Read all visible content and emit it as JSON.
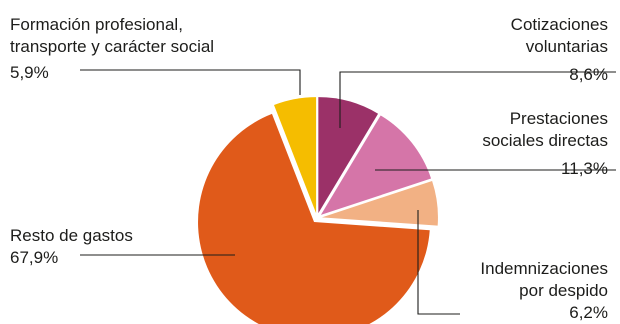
{
  "chart_data": {
    "type": "pie",
    "exploded": true,
    "start_angle_deg": 0,
    "direction": "clockwise",
    "slices": [
      {
        "label_lines": [
          "Cotizaciones",
          "voluntarias"
        ],
        "value_label": "8,6%",
        "value": 8.6,
        "color": "#9b3168"
      },
      {
        "label_lines": [
          "Prestaciones",
          "sociales directas"
        ],
        "value_label": "11,3%",
        "value": 11.3,
        "color": "#d575a8"
      },
      {
        "label_lines": [
          "Indemnizaciones",
          "por despido"
        ],
        "value_label": "6,2%",
        "value": 6.2,
        "color": "#f2b184"
      },
      {
        "label_lines": [
          "Resto de gastos"
        ],
        "value_label": "67,9%",
        "value": 67.9,
        "color": "#e05a1a"
      },
      {
        "label_lines": [
          "Formación profesional,",
          "transporte y carácter social"
        ],
        "value_label": "5,9%",
        "value": 5.9,
        "color": "#f5bd00"
      }
    ]
  }
}
